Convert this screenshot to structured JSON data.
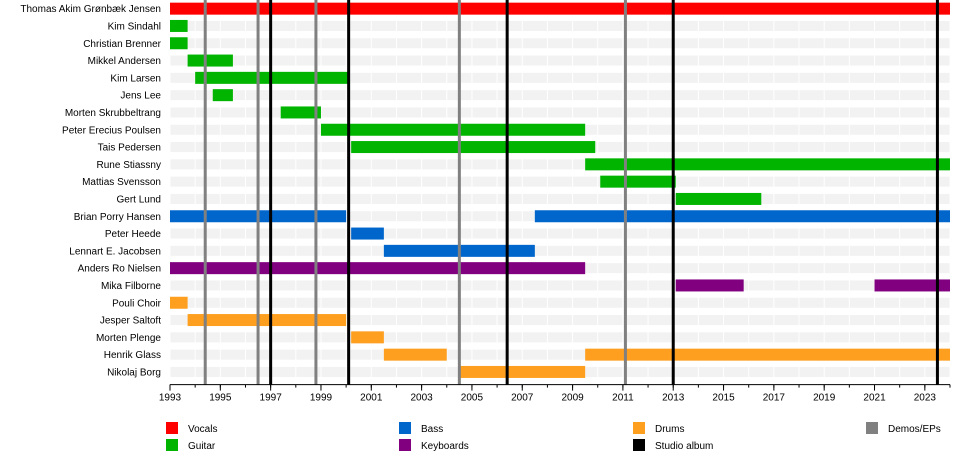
{
  "chart_data": {
    "type": "timeline",
    "x_range": [
      1993,
      2024
    ],
    "x_ticks": [
      1993,
      1995,
      1997,
      1999,
      2001,
      2003,
      2005,
      2007,
      2009,
      2011,
      2013,
      2015,
      2017,
      2019,
      2021,
      2023
    ],
    "grid": true,
    "legend_position": "bottom",
    "roles": {
      "vocals": {
        "label": "Vocals",
        "color": "#ff0000"
      },
      "guitar": {
        "label": "Guitar",
        "color": "#00b400"
      },
      "bass": {
        "label": "Bass",
        "color": "#0066cc"
      },
      "drums": {
        "label": "Drums",
        "color": "#ff9f20"
      },
      "keyboards": {
        "label": "Keyboards",
        "color": "#800080"
      }
    },
    "members": [
      {
        "name": "Thomas Akim Grønbæk Jensen",
        "periods": [
          {
            "role": "vocals",
            "start": 1993.0,
            "end": 2024.0
          }
        ]
      },
      {
        "name": "Kim Sindahl",
        "periods": [
          {
            "role": "guitar",
            "start": 1993.0,
            "end": 1993.7
          }
        ]
      },
      {
        "name": "Christian Brenner",
        "periods": [
          {
            "role": "guitar",
            "start": 1993.0,
            "end": 1993.7
          }
        ]
      },
      {
        "name": "Mikkel Andersen",
        "periods": [
          {
            "role": "guitar",
            "start": 1993.7,
            "end": 1995.5
          }
        ]
      },
      {
        "name": "Kim Larsen",
        "periods": [
          {
            "role": "guitar",
            "start": 1994.0,
            "end": 2000.1
          }
        ]
      },
      {
        "name": "Jens Lee",
        "periods": [
          {
            "role": "guitar",
            "start": 1994.7,
            "end": 1995.5
          }
        ]
      },
      {
        "name": "Morten Skrubbeltrang",
        "periods": [
          {
            "role": "guitar",
            "start": 1997.4,
            "end": 1999.0
          }
        ]
      },
      {
        "name": "Peter Erecius Poulsen",
        "periods": [
          {
            "role": "guitar",
            "start": 1999.0,
            "end": 2009.5
          }
        ]
      },
      {
        "name": "Tais Pedersen",
        "periods": [
          {
            "role": "guitar",
            "start": 2000.2,
            "end": 2009.9
          }
        ]
      },
      {
        "name": "Rune Stiassny",
        "periods": [
          {
            "role": "guitar",
            "start": 2009.5,
            "end": 2024.0
          }
        ]
      },
      {
        "name": "Mattias Svensson",
        "periods": [
          {
            "role": "guitar",
            "start": 2010.1,
            "end": 2013.1
          }
        ]
      },
      {
        "name": "Gert Lund",
        "periods": [
          {
            "role": "guitar",
            "start": 2013.1,
            "end": 2016.5
          }
        ]
      },
      {
        "name": "Brian Porry Hansen",
        "periods": [
          {
            "role": "bass",
            "start": 1993.0,
            "end": 2000.0
          },
          {
            "role": "bass",
            "start": 2007.5,
            "end": 2024.0
          }
        ]
      },
      {
        "name": "Peter Heede",
        "periods": [
          {
            "role": "bass",
            "start": 2000.2,
            "end": 2001.5
          }
        ]
      },
      {
        "name": "Lennart E. Jacobsen",
        "periods": [
          {
            "role": "bass",
            "start": 2001.5,
            "end": 2007.5
          }
        ]
      },
      {
        "name": "Anders Ro Nielsen",
        "periods": [
          {
            "role": "keyboards",
            "start": 1993.0,
            "end": 2009.5
          }
        ]
      },
      {
        "name": "Mika Filborne",
        "periods": [
          {
            "role": "keyboards",
            "start": 2013.1,
            "end": 2015.8
          },
          {
            "role": "keyboards",
            "start": 2021.0,
            "end": 2024.0
          }
        ]
      },
      {
        "name": "Pouli Choir",
        "periods": [
          {
            "role": "drums",
            "start": 1993.0,
            "end": 1993.7
          }
        ]
      },
      {
        "name": "Jesper Saltoft",
        "periods": [
          {
            "role": "drums",
            "start": 1993.7,
            "end": 2000.0
          }
        ]
      },
      {
        "name": "Morten Plenge",
        "periods": [
          {
            "role": "drums",
            "start": 2000.2,
            "end": 2001.5
          }
        ]
      },
      {
        "name": "Henrik Glass",
        "periods": [
          {
            "role": "drums",
            "start": 2001.5,
            "end": 2004.0
          },
          {
            "role": "drums",
            "start": 2009.5,
            "end": 2024.0
          }
        ]
      },
      {
        "name": "Nikolaj Borg",
        "periods": [
          {
            "role": "drums",
            "start": 2004.5,
            "end": 2009.5
          }
        ]
      }
    ],
    "releases": {
      "demos": {
        "label": "Demos/EPs",
        "color": "#808080",
        "years": [
          1994.4,
          1996.5,
          1998.8,
          2004.5,
          2011.1
        ]
      },
      "albums": {
        "label": "Studio album",
        "color": "#000000",
        "years": [
          1997.0,
          2000.1,
          2006.4,
          2013.0,
          2023.5
        ]
      }
    }
  }
}
